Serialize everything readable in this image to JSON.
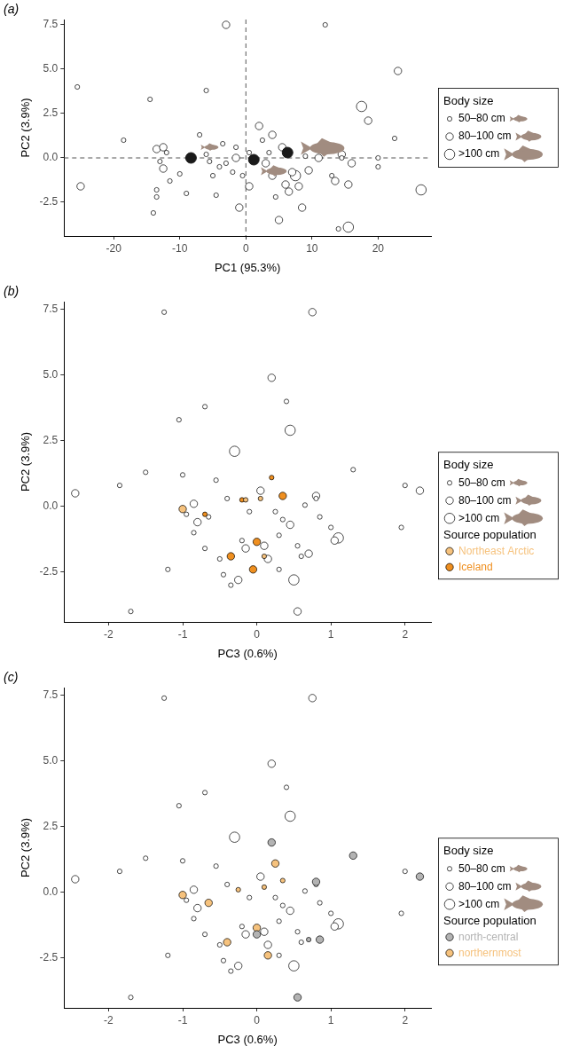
{
  "chart_data": [
    {
      "type": "scatter",
      "panel_label": "(a)",
      "x_label": "PC1 (95.3%)",
      "y_label": "PC2 (3.9%)",
      "xlim": [
        -27.5,
        28
      ],
      "xticks": [
        -20,
        -10,
        0,
        10,
        20
      ],
      "ylim": [
        -4.4,
        7.8
      ],
      "yticks": [
        -2.5,
        {
          "value": 0,
          "label": "0.0"
        },
        2.5,
        {
          "value": 5,
          "label": "5.0"
        },
        7.5
      ],
      "grid": false,
      "legend": "right",
      "size_legend_title": "Body size",
      "reference_lines": [
        {
          "axis": "x",
          "value": 0,
          "line_style": "dashed"
        },
        {
          "axis": "y",
          "value": 0,
          "line_style": "dashed"
        }
      ],
      "series": [
        {
          "name": "50–80 cm",
          "marker": "open circle",
          "x": [
            -25.5,
            -18.5,
            -14.5,
            -12,
            -13,
            -13.5,
            -13.5,
            -14,
            -11.5,
            -10,
            -9,
            -7,
            -6,
            -6,
            -5.5,
            -5,
            -4.5,
            -4,
            -3.5,
            -3,
            -2,
            -1.5,
            -0.5,
            0.5,
            2.5,
            3.5,
            4.5,
            9,
            12,
            13,
            14,
            14.5,
            20,
            20,
            22.5
          ],
          "y": [
            4.0,
            1.0,
            3.3,
            0.3,
            -0.2,
            -1.8,
            -2.2,
            -3.1,
            -1.3,
            -0.9,
            -2.0,
            1.3,
            3.8,
            0.2,
            -0.2,
            -1.0,
            -2.1,
            -0.5,
            0.8,
            -0.3,
            -0.8,
            0.6,
            -1.0,
            0.3,
            1.0,
            0.3,
            -2.2,
            0.1,
            7.5,
            -1.0,
            -4.0,
            0.0,
            0.0,
            -0.5,
            1.1
          ]
        },
        {
          "name": "80–100 cm",
          "marker": "open circle",
          "x": [
            -25,
            -13.5,
            -12.5,
            -12.5,
            -3,
            -1.5,
            -1,
            0.5,
            2,
            3,
            4,
            4,
            5,
            5.5,
            6,
            6.5,
            7,
            8,
            8.5,
            9.5,
            11,
            13.5,
            14.5,
            15.5,
            16,
            18.5,
            23
          ],
          "y": [
            -1.6,
            0.5,
            0.6,
            -0.6,
            7.5,
            0.0,
            -2.8,
            -1.6,
            1.8,
            -0.3,
            1.3,
            -1.0,
            -3.5,
            0.6,
            -1.5,
            -1.9,
            -0.8,
            -1.6,
            -2.8,
            -0.7,
            0.0,
            -1.3,
            0.2,
            -1.5,
            -0.3,
            2.1,
            4.9
          ]
        },
        {
          "name": ">100 cm",
          "marker": "open circle",
          "x": [
            7.5,
            15.5,
            17.5,
            26.5
          ],
          "y": [
            -1.0,
            -3.9,
            2.9,
            -1.8
          ]
        }
      ],
      "group_means": {
        "color": "#1a1a1a",
        "x": [
          -8.3,
          1.2,
          6.3
        ],
        "y": [
          0.0,
          -0.1,
          0.3
        ],
        "body_size": [
          "50–80 cm",
          "80–100 cm",
          ">100 cm"
        ]
      }
    },
    {
      "type": "scatter",
      "panel_label": "(b)",
      "x_label": "PC3 (0.6%)",
      "y_label": "PC2 (3.9%)",
      "xlim": [
        -2.6,
        2.35
      ],
      "xticks": [
        -2,
        -1,
        0,
        1,
        2
      ],
      "ylim": [
        -4.4,
        7.8
      ],
      "yticks": [
        -2.5,
        {
          "value": 0,
          "label": "0.0"
        },
        2.5,
        {
          "value": 5,
          "label": "5.0"
        },
        7.5
      ],
      "grid": false,
      "legend": "right",
      "size_legend_title": "Body size",
      "source_legend_title": "Source population",
      "series": [
        {
          "name": "50–80 cm",
          "marker": "open circle",
          "x": [
            -1.85,
            -1.7,
            -1.5,
            -1.25,
            -1.2,
            -1.05,
            -1.0,
            -0.85,
            -0.7,
            -0.65,
            -0.55,
            -0.5,
            -0.45,
            -0.4,
            -0.35,
            -0.2,
            -0.1,
            0.3,
            0.35,
            0.4,
            0.55,
            0.6,
            0.8,
            0.85,
            1.0,
            1.3,
            1.95,
            2.0,
            -0.95,
            0.3,
            -0.7,
            0.25,
            0.65
          ],
          "y": [
            0.8,
            -4.0,
            1.3,
            7.4,
            -2.4,
            3.3,
            1.2,
            -1.0,
            3.8,
            -0.4,
            1.0,
            -2.0,
            -2.6,
            0.3,
            -3.0,
            -1.3,
            -0.2,
            -1.1,
            -0.5,
            4.0,
            -1.5,
            -1.9,
            0.3,
            -0.4,
            -0.8,
            1.4,
            -0.8,
            0.8,
            -0.3,
            -2.4,
            -1.6,
            -0.2,
            0.05
          ]
        },
        {
          "name": "80–100 cm",
          "marker": "open circle",
          "x": [
            -2.45,
            -0.85,
            -0.8,
            -0.25,
            -0.15,
            0.05,
            0.1,
            0.15,
            0.2,
            0.45,
            0.55,
            0.7,
            0.75,
            0.8,
            1.05,
            2.2
          ],
          "y": [
            0.5,
            0.1,
            -0.6,
            -2.8,
            -1.6,
            0.6,
            -1.5,
            -2.0,
            4.9,
            -0.7,
            -4.0,
            -1.8,
            7.4,
            0.4,
            -1.3,
            0.6
          ]
        },
        {
          "name": ">100 cm",
          "marker": "open circle",
          "x": [
            -0.3,
            0.45,
            0.5,
            1.1
          ],
          "y": [
            2.1,
            2.9,
            -2.8,
            -1.2
          ]
        },
        {
          "name": "Northeast Arctic",
          "color": "#f6c27d",
          "marker": "filled circle",
          "x": [
            -1.0,
            -0.15,
            0.05,
            0.1
          ],
          "y": [
            -0.1,
            0.25,
            0.3,
            -1.9
          ],
          "body_size": [
            "80–100 cm",
            "50–80 cm",
            "50–80 cm",
            "50–80 cm"
          ]
        },
        {
          "name": "Iceland",
          "color": "#ef8f1f",
          "marker": "filled circle",
          "x": [
            -0.7,
            0.2,
            0.35,
            -0.35,
            -0.05,
            0.0,
            -0.2
          ],
          "y": [
            -0.3,
            1.1,
            0.4,
            -1.9,
            -2.4,
            -1.35,
            0.25
          ],
          "body_size": [
            "50–80 cm",
            "50–80 cm",
            "80–100 cm",
            "80–100 cm",
            "80–100 cm",
            "80–100 cm",
            "50–80 cm"
          ]
        }
      ]
    },
    {
      "type": "scatter",
      "panel_label": "(c)",
      "x_label": "PC3 (0.6%)",
      "y_label": "PC2 (3.9%)",
      "xlim": [
        -2.6,
        2.35
      ],
      "xticks": [
        -2,
        -1,
        0,
        1,
        2
      ],
      "ylim": [
        -4.4,
        7.8
      ],
      "yticks": [
        -2.5,
        {
          "value": 0,
          "label": "0.0"
        },
        2.5,
        {
          "value": 5,
          "label": "5.0"
        },
        7.5
      ],
      "grid": false,
      "legend": "right",
      "size_legend_title": "Body size",
      "source_legend_title": "Source population",
      "series": [
        {
          "name": "50–80 cm",
          "marker": "open circle",
          "x": [
            -1.85,
            -1.7,
            -1.5,
            -1.25,
            -1.2,
            -1.05,
            -1.0,
            -0.85,
            -0.7,
            -0.65,
            -0.55,
            -0.5,
            -0.45,
            -0.4,
            -0.35,
            -0.2,
            -0.1,
            0.3,
            0.35,
            0.4,
            0.55,
            0.6,
            0.8,
            0.85,
            1.0,
            1.95,
            2.0,
            -0.95,
            0.3,
            -0.7,
            0.25,
            0.65
          ],
          "y": [
            0.8,
            -4.0,
            1.3,
            7.4,
            -2.4,
            3.3,
            1.2,
            -1.0,
            3.8,
            -0.4,
            1.0,
            -2.0,
            -2.6,
            0.3,
            -3.0,
            -1.3,
            -0.2,
            -1.1,
            -0.5,
            4.0,
            -1.5,
            -1.9,
            0.3,
            -0.4,
            -0.8,
            -0.8,
            0.8,
            -0.3,
            -2.4,
            -1.6,
            -0.2,
            0.05
          ]
        },
        {
          "name": "80–100 cm",
          "marker": "open circle",
          "x": [
            -2.45,
            -0.85,
            -0.8,
            -0.25,
            -0.15,
            0.05,
            0.1,
            0.15,
            0.2,
            0.45,
            0.75,
            1.05
          ],
          "y": [
            0.5,
            0.1,
            -0.6,
            -2.8,
            -1.6,
            0.6,
            -1.5,
            -2.0,
            4.9,
            -0.7,
            7.4,
            -1.3
          ]
        },
        {
          "name": ">100 cm",
          "marker": "open circle",
          "x": [
            -0.3,
            0.45,
            0.5,
            1.1
          ],
          "y": [
            2.1,
            2.9,
            -2.8,
            -1.2
          ]
        },
        {
          "name": "north-central",
          "color": "#b3b3b3",
          "marker": "filled circle",
          "x": [
            0.2,
            0.0,
            0.55,
            0.8,
            0.85,
            0.7,
            1.3,
            2.2
          ],
          "y": [
            1.9,
            -1.6,
            -4.0,
            0.4,
            -1.8,
            -1.8,
            1.4,
            0.6
          ],
          "body_size": [
            "80–100 cm",
            "80–100 cm",
            "80–100 cm",
            "80–100 cm",
            "80–100 cm",
            "50–80 cm",
            "80–100 cm",
            "80–100 cm"
          ]
        },
        {
          "name": "northernmost",
          "color": "#f6c27d",
          "marker": "filled circle",
          "x": [
            -1.0,
            -0.65,
            -0.4,
            -0.25,
            0.1,
            0.0,
            0.15,
            0.25,
            0.35
          ],
          "y": [
            -0.1,
            -0.4,
            -1.9,
            0.1,
            0.2,
            -1.35,
            -2.4,
            1.1,
            0.45
          ],
          "body_size": [
            "80–100 cm",
            "80–100 cm",
            "80–100 cm",
            "50–80 cm",
            "50–80 cm",
            "80–100 cm",
            "80–100 cm",
            "80–100 cm",
            "50–80 cm"
          ]
        }
      ]
    }
  ]
}
